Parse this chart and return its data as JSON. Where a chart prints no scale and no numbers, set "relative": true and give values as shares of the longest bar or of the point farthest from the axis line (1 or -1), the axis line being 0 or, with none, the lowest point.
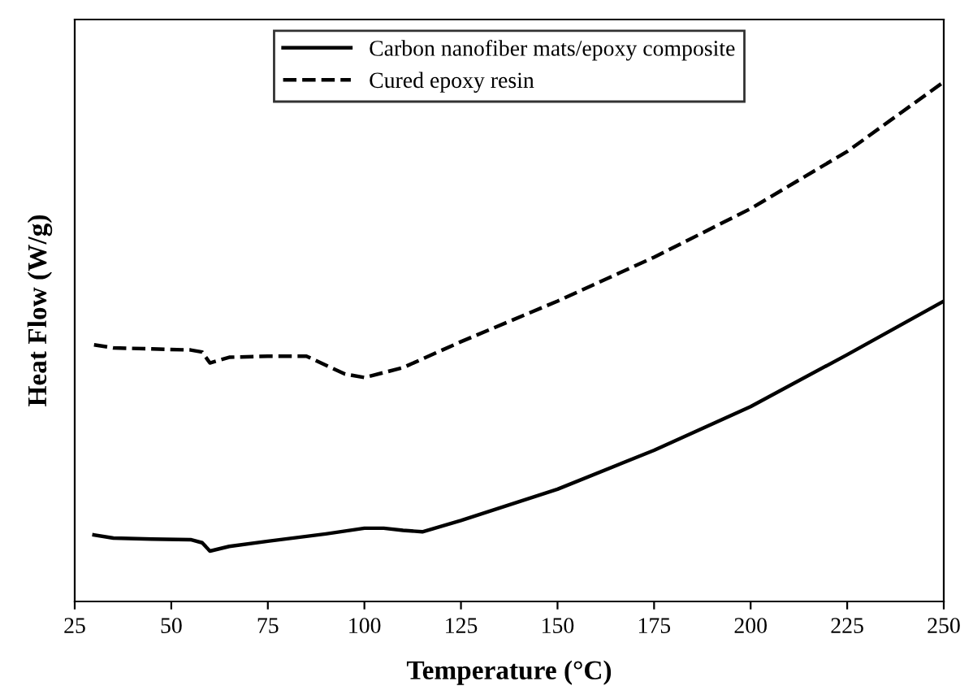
{
  "chart_data": {
    "type": "line",
    "relative": true,
    "xlabel": "Temperature (°C)",
    "ylabel": "Heat Flow (W/g)",
    "xlim": [
      25,
      250
    ],
    "xticks": [
      25,
      50,
      75,
      100,
      125,
      150,
      175,
      200,
      225,
      250
    ],
    "legend": "top",
    "grid": false,
    "tick_labels": "x",
    "series": [
      {
        "name": "Carbon nanofiber mats/epoxy composite",
        "color": "#000000",
        "line_style": "solid",
        "x": [
          30,
          35,
          45,
          55,
          58,
          60,
          65,
          75,
          90,
          100,
          105,
          110,
          115,
          125,
          150,
          175,
          200,
          225,
          250
        ],
        "values": [
          0.128,
          0.122,
          0.12,
          0.119,
          0.113,
          0.097,
          0.106,
          0.116,
          0.13,
          0.141,
          0.141,
          0.137,
          0.134,
          0.156,
          0.216,
          0.291,
          0.375,
          0.475,
          0.578
        ]
      },
      {
        "name": "Cured epoxy resin",
        "color": "#000000",
        "line_style": "dashed",
        "x": [
          30,
          35,
          45,
          55,
          58,
          60,
          65,
          75,
          85,
          95,
          100,
          110,
          125,
          150,
          175,
          200,
          225,
          250
        ],
        "values": [
          0.494,
          0.488,
          0.486,
          0.484,
          0.48,
          0.459,
          0.47,
          0.472,
          0.472,
          0.4375,
          0.431,
          0.45,
          0.5,
          0.578,
          0.6625,
          0.756,
          0.866,
          1.0
        ]
      }
    ]
  }
}
